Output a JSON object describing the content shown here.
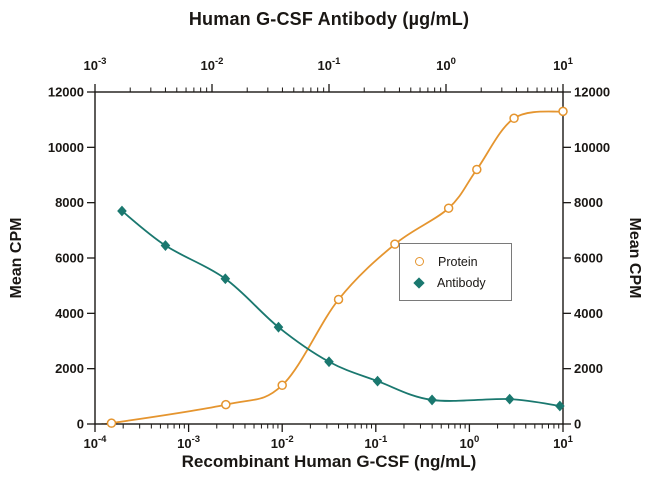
{
  "title_top": "Human G-CSF Antibody (µg/mL)",
  "xlabel_bottom": "Recombinant Human G-CSF (ng/mL)",
  "ylabel_left": "Mean CPM",
  "ylabel_right": "Mean CPM",
  "legend": {
    "items": [
      {
        "label": "Protein",
        "marker": "open-circle",
        "color": "#E5952F"
      },
      {
        "label": "Antibody",
        "marker": "filled-diamond",
        "color": "#1A786F"
      }
    ]
  },
  "chart_data": {
    "type": "line",
    "title": "Human G-CSF Antibody (µg/mL)",
    "grid": false,
    "legend_position": "middle-right",
    "x_axis_bottom": {
      "label": "Recombinant Human G-CSF (ng/mL)",
      "units": "ng/mL",
      "scale": "log10",
      "min": 0.0001,
      "max": 10,
      "tick_exponents": [
        -4,
        -3,
        -2,
        -1,
        0,
        1
      ]
    },
    "x_axis_top": {
      "label": "Human G-CSF Antibody (µg/mL)",
      "units": "µg/mL",
      "scale": "log10",
      "min": 0.001,
      "max": 10,
      "tick_exponents": [
        -3,
        -2,
        -1,
        0,
        1
      ]
    },
    "y_axis_left": {
      "label": "Mean CPM",
      "min": 0,
      "max": 12000,
      "ticks": [
        0,
        2000,
        4000,
        6000,
        8000,
        10000,
        12000
      ]
    },
    "y_axis_right": {
      "label": "Mean CPM",
      "min": 0,
      "max": 12000,
      "ticks": [
        0,
        2000,
        4000,
        6000,
        8000,
        10000,
        12000
      ]
    },
    "series": [
      {
        "name": "Protein",
        "axis": "bottom",
        "units": "ng/mL",
        "marker": "open-circle",
        "color": "#E5952F",
        "curve_prefix_x": 0.00012,
        "curve_prefix_y": 5,
        "x": [
          0.00015,
          0.0025,
          0.01,
          0.04,
          0.16,
          0.6,
          1.2,
          3,
          10
        ],
        "y": [
          30,
          700,
          1400,
          4500,
          6500,
          7800,
          9200,
          11050,
          11300
        ]
      },
      {
        "name": "Antibody",
        "axis": "top",
        "units": "µg/mL",
        "marker": "filled-diamond",
        "color": "#1A786F",
        "x": [
          0.0017,
          0.004,
          0.013,
          0.037,
          0.1,
          0.26,
          0.76,
          3.5,
          9.4
        ],
        "y": [
          7700,
          6450,
          5250,
          3500,
          2250,
          1550,
          870,
          900,
          650
        ]
      }
    ]
  }
}
